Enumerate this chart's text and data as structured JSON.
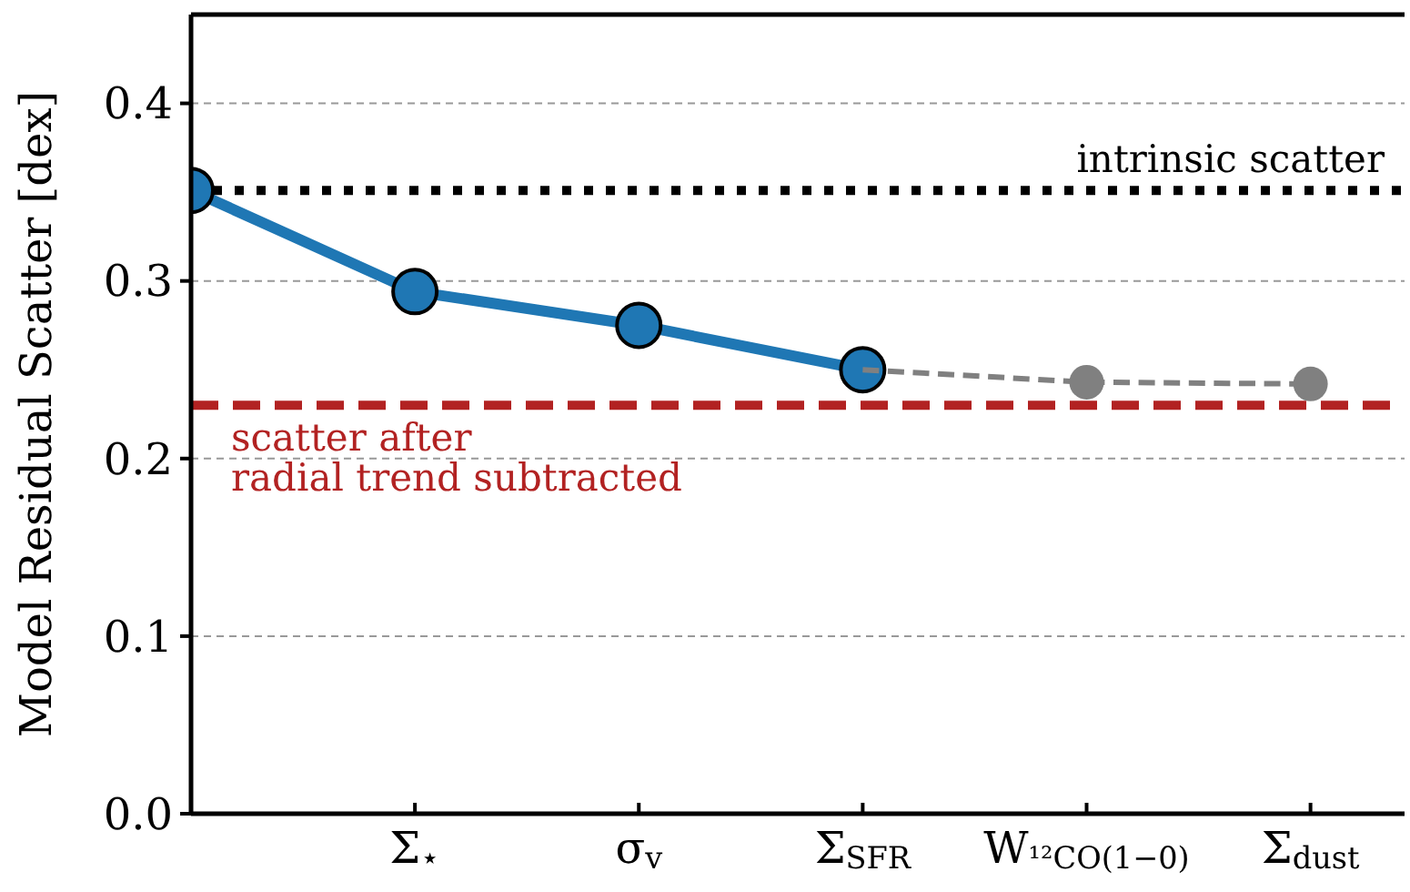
{
  "chart_data": {
    "type": "line",
    "ylabel": "Model Residual Scatter [dex]",
    "categories": [
      null,
      "Σ$_{⋆}$",
      "σ$_{v}$",
      "Σ$_{SFR}$",
      "W$_{¹²CO(1−0)}$",
      "Σ$_{dust}$"
    ],
    "series": [
      {
        "color": "#1f77b4",
        "values": [
          0.351,
          0.294,
          0.275,
          0.25,
          null,
          null
        ],
        "marker": "circle",
        "line_style": "solid"
      },
      {
        "color": "#808080",
        "values": [
          null,
          null,
          null,
          0.25,
          0.243,
          0.242
        ],
        "marker": "circle",
        "line_style": "dashed"
      }
    ],
    "ylim": [
      0,
      0.45
    ],
    "yticks": [
      {
        "value": 0,
        "label": "0.0"
      },
      0.1,
      0.2,
      0.3,
      0.4
    ],
    "grid": "y",
    "ref_lines": [
      {
        "axis": "y",
        "value": 0.351,
        "label": "intrinsic scatter",
        "color": "#000000",
        "line_style": "dotted"
      },
      {
        "axis": "y",
        "value": 0.23,
        "label": "scatter after\nradial trend subtracted",
        "color": "#b22222",
        "line_style": "dashed"
      }
    ]
  }
}
